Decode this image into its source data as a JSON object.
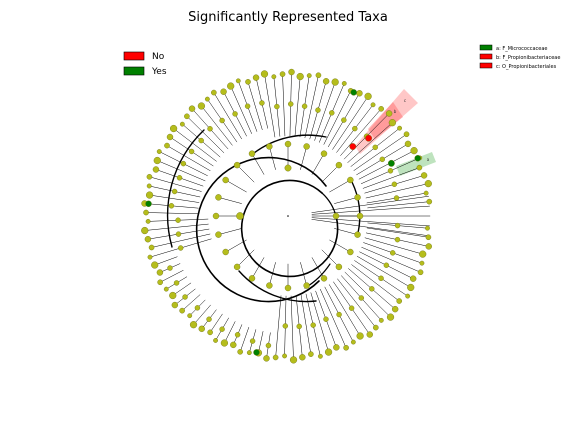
{
  "figure": {
    "title": "Significantly Represented Taxa"
  },
  "legend_main": [
    {
      "label": "No",
      "color": "#ff0000"
    },
    {
      "label": "Yes",
      "color": "#008000"
    }
  ],
  "legend_clades": [
    {
      "label": "a: F_Micrococcaceae",
      "color": "#008000"
    },
    {
      "label": "b: F_Propionibacteriaceae",
      "color": "#ff0000"
    },
    {
      "label": "c: O_Propionibacteriales",
      "color": "#ff0000"
    }
  ],
  "clade_markers": [
    "a",
    "b",
    "c"
  ],
  "colors": {
    "node_fill": "#b5bd1c",
    "node_stroke": "#6b6f10",
    "edge": "#000000",
    "highlight_red": "#ff0000",
    "highlight_green": "#008000",
    "shade_red": "#ff9999",
    "shade_green": "#88cc88"
  }
}
